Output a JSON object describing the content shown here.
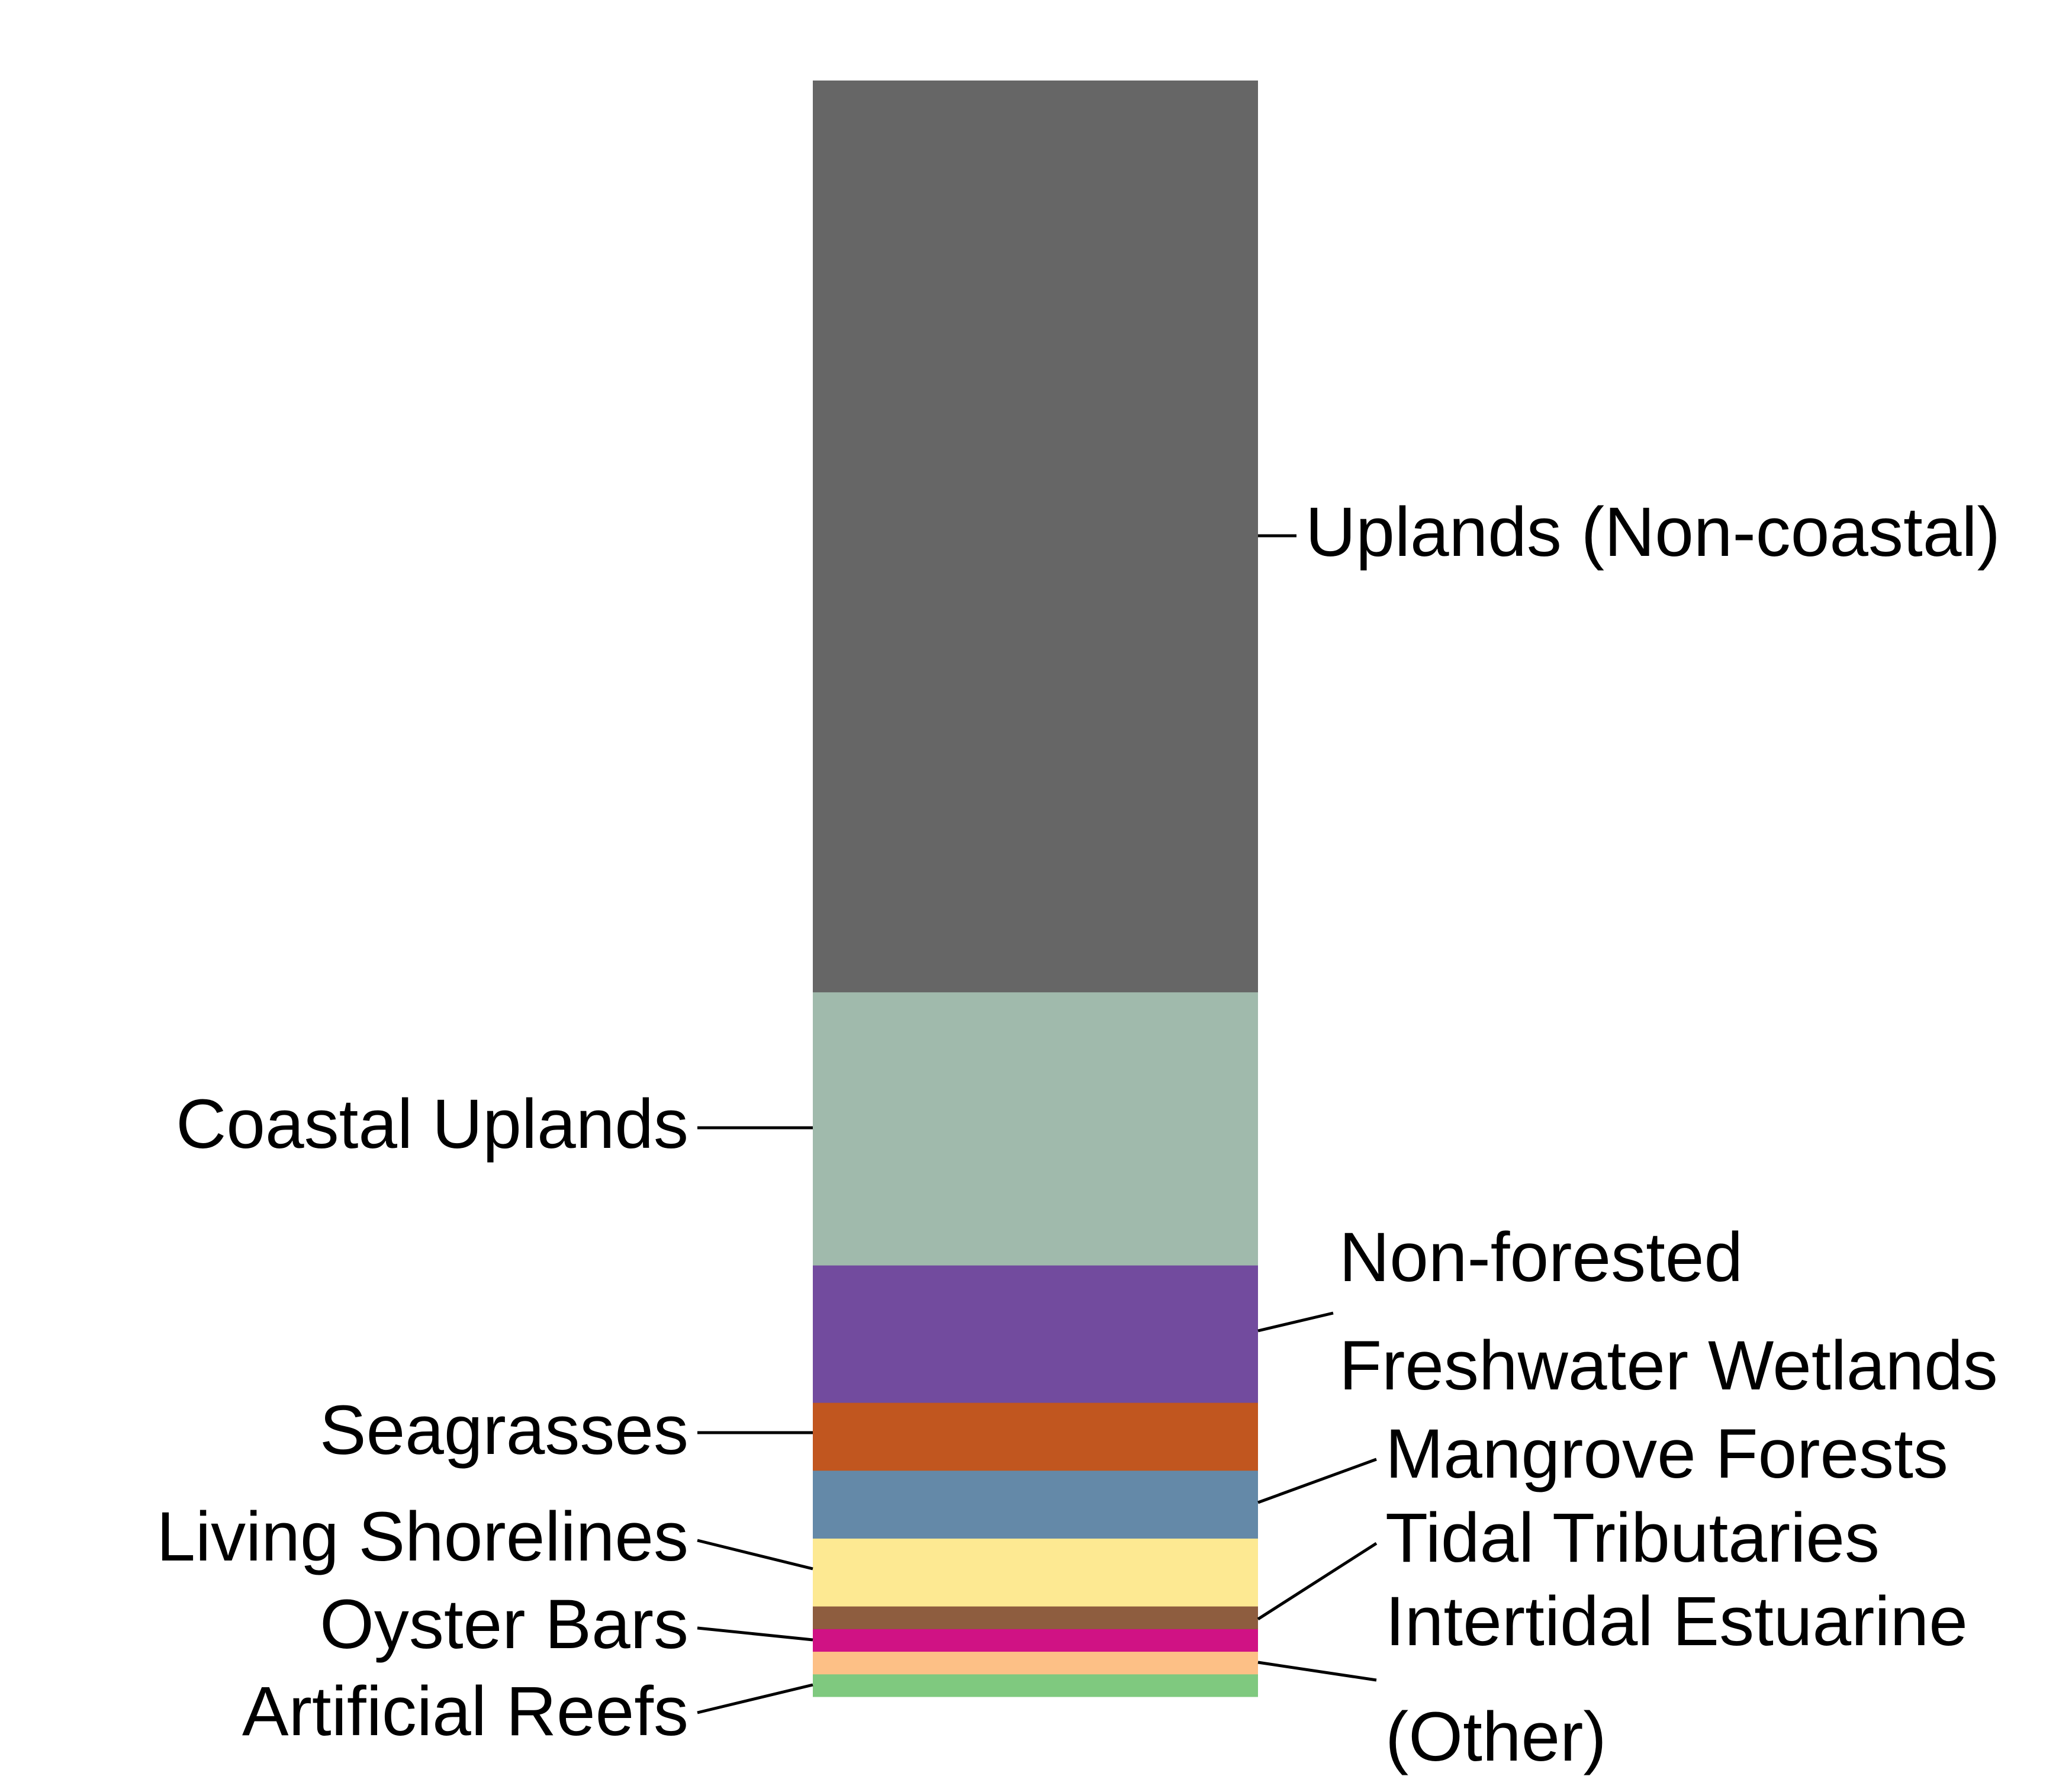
{
  "chart_data": {
    "type": "bar",
    "stacked": true,
    "title": "",
    "xlabel": "",
    "ylabel": "",
    "axes_visible": false,
    "grid": false,
    "ylim": [
      0,
      100
    ],
    "segments": [
      {
        "label": "Artificial Reefs",
        "value": 1.4,
        "color": "#7FC97F",
        "side": "left"
      },
      {
        "label": "Intertidal Estuarine (Other)",
        "value": 1.4,
        "color": "#FDC086",
        "side": "right"
      },
      {
        "label": "Oyster Bars",
        "value": 1.4,
        "color": "#D01284",
        "side": "left"
      },
      {
        "label": "Tidal Tributaries",
        "value": 1.4,
        "color": "#8E5D3F",
        "side": "right"
      },
      {
        "label": "Living Shorelines",
        "value": 4.2,
        "color": "#FDE992",
        "side": "left"
      },
      {
        "label": "Mangrove Forests",
        "value": 4.2,
        "color": "#6489A8",
        "side": "right"
      },
      {
        "label": "Seagrasses",
        "value": 4.2,
        "color": "#C1561F",
        "side": "left"
      },
      {
        "label": "Non-forested Freshwater Wetlands",
        "value": 8.5,
        "color": "#724B9E",
        "side": "right"
      },
      {
        "label": "Coastal Uplands",
        "value": 16.9,
        "color": "#A0BAAC",
        "side": "left"
      },
      {
        "label": "Uplands (Non-coastal)",
        "value": 56.4,
        "color": "#666666",
        "side": "right"
      }
    ],
    "label_lines": {
      "Uplands (Non-coastal)": [
        "Uplands (Non-coastal)"
      ],
      "Coastal Uplands": [
        "Coastal Uplands"
      ],
      "Non-forested Freshwater Wetlands": [
        "Non-forested",
        "Freshwater Wetlands"
      ],
      "Seagrasses": [
        "Seagrasses"
      ],
      "Mangrove Forests": [
        "Mangrove Forests"
      ],
      "Living Shorelines": [
        "Living Shorelines"
      ],
      "Tidal Tributaries": [
        "Tidal Tributaries"
      ],
      "Oyster Bars": [
        "Oyster Bars"
      ],
      "Intertidal Estuarine (Other)": [
        "Intertidal Estuarine",
        "(Other)"
      ],
      "Artificial Reefs": [
        "Artificial Reefs"
      ]
    }
  }
}
